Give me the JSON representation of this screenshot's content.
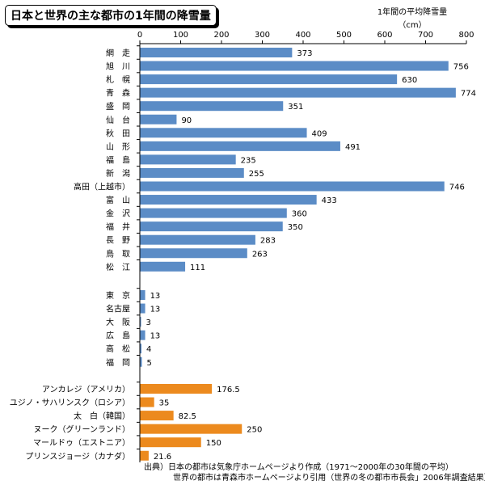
{
  "title": "日本と世界の主な都市の1年間の降雪量",
  "unit_line1": "1年間の平均降雪量",
  "unit_line2": "（cm）",
  "source_line1": "出典）日本の都市は気象庁ホームページより作成（1971～2000年の30年間の平均）",
  "source_line2": "世界の都市は青森市ホームページより引用（世界の冬の都市市長会」2006年調査結果）",
  "colors": {
    "japan": "#5b8cc6",
    "world": "#ec8a1e"
  },
  "chart_data": {
    "type": "bar",
    "orientation": "horizontal",
    "title": "日本と世界の主な都市の1年間の降雪量",
    "xlabel": "1年間の平均降雪量（cm）",
    "xlim": [
      0,
      800
    ],
    "xticks": [
      0,
      100,
      200,
      300,
      400,
      500,
      600,
      700,
      800
    ],
    "grid": false,
    "groups": [
      {
        "color": "#5b8cc6",
        "categories": [
          "網　走",
          "旭　川",
          "札　幌",
          "青　森",
          "盛　岡",
          "仙　台",
          "秋　田",
          "山　形",
          "福　島",
          "新　潟",
          "高田（上越市）",
          "富　山",
          "金　沢",
          "福　井",
          "長　野",
          "鳥　取",
          "松　江"
        ],
        "values": [
          373,
          756,
          630,
          774,
          351,
          90,
          409,
          491,
          235,
          255,
          746,
          433,
          360,
          350,
          283,
          263,
          111
        ],
        "labels": [
          "373",
          "756",
          "630",
          "774",
          "351",
          "90",
          "409",
          "491",
          "235",
          "255",
          "746",
          "433",
          "360",
          "350",
          "283",
          "263",
          "111"
        ]
      },
      {
        "color": "#5b8cc6",
        "categories": [
          "東　京",
          "名古屋",
          "大　阪",
          "広　島",
          "高　松",
          "福　岡"
        ],
        "values": [
          13,
          13,
          3,
          13,
          4,
          5
        ],
        "labels": [
          "13",
          "13",
          "3",
          "13",
          "4",
          "5"
        ]
      },
      {
        "color": "#ec8a1e",
        "categories": [
          "アンカレジ（アメリカ）",
          "ユジノ・サハリンスク（ロシア）",
          "太　白（韓国）",
          "ヌーク（グリーンランド）",
          "マールドゥ（エストニア）",
          "プリンスジョージ（カナダ）"
        ],
        "values": [
          176.5,
          35,
          82.5,
          250,
          150,
          21.6
        ],
        "labels": [
          "176.5",
          "35",
          "82.5",
          "250",
          "150",
          "21.6"
        ]
      }
    ]
  }
}
